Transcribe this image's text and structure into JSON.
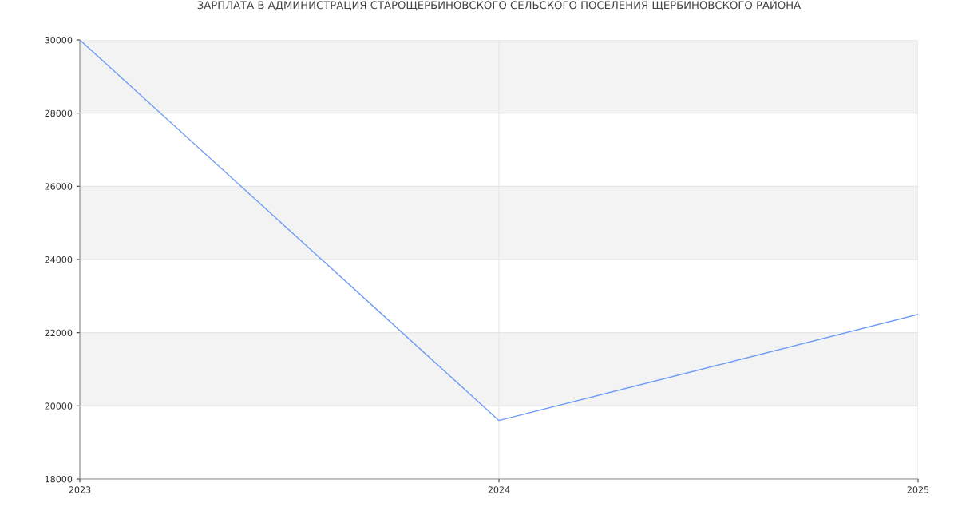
{
  "chart_data": {
    "type": "line",
    "title": "ЗАРПЛАТА В АДМИНИСТРАЦИЯ СТАРОЩЕРБИНОВСКОГО СЕЛЬСКОГО ПОСЕЛЕНИЯ ЩЕРБИНОВСКОГО РАЙОНА",
    "x": [
      2023,
      2024,
      2025
    ],
    "series": [
      {
        "color": "#6f9cf5",
        "values": [
          30000,
          19600,
          22500
        ]
      }
    ],
    "xlim": [
      2023,
      2025
    ],
    "xticks": [
      2023,
      2024,
      2025
    ],
    "ylim": [
      18000,
      30000
    ],
    "yticks": [
      18000,
      20000,
      22000,
      24000,
      26000,
      28000,
      30000
    ],
    "bands": [
      {
        "axis": "y",
        "from": 20000,
        "to": 22000,
        "color": "#f3f3f3"
      },
      {
        "axis": "y",
        "from": 24000,
        "to": 26000,
        "color": "#f3f3f3"
      },
      {
        "axis": "y",
        "from": 28000,
        "to": 30000,
        "color": "#f3f3f3"
      }
    ],
    "grid": true,
    "marker": "none",
    "line_style": "solid"
  }
}
